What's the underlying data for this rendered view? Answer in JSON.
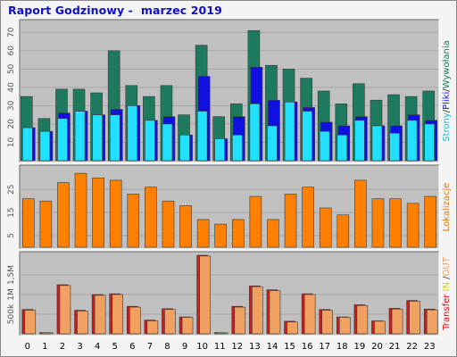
{
  "title": "Raport Godzinowy -  marzec 2019",
  "chart_data": [
    {
      "type": "bar",
      "categories": [
        "0",
        "1",
        "2",
        "3",
        "4",
        "5",
        "6",
        "7",
        "8",
        "9",
        "10",
        "11",
        "12",
        "13",
        "14",
        "15",
        "16",
        "17",
        "18",
        "19",
        "20",
        "21",
        "22",
        "23"
      ],
      "ylim": [
        0,
        75
      ],
      "yticks": [
        10,
        20,
        30,
        40,
        50,
        60,
        70
      ],
      "legend_parts": [
        {
          "text": "Strony",
          "color": "#22b8d8"
        },
        {
          "text": "/",
          "color": "#333333"
        },
        {
          "text": "Pliki",
          "color": "#1818e0"
        },
        {
          "text": "/",
          "color": "#333333"
        },
        {
          "text": "Wywołania",
          "color": "#1a7a5a"
        }
      ],
      "series": [
        {
          "name": "Wywołania",
          "color": "#1e7a5e",
          "values": [
            35,
            23,
            39,
            39,
            37,
            60,
            41,
            35,
            41,
            25,
            63,
            24,
            31,
            71,
            52,
            50,
            45,
            38,
            31,
            42,
            33,
            36,
            35,
            38
          ]
        },
        {
          "name": "Pliki",
          "color": "#1010e0",
          "values": [
            18,
            16,
            26,
            27,
            25,
            28,
            30,
            22,
            24,
            14,
            46,
            12,
            24,
            51,
            33,
            32,
            29,
            21,
            19,
            24,
            19,
            19,
            25,
            22
          ]
        },
        {
          "name": "Strony",
          "color": "#22e0ff",
          "values": [
            18,
            16,
            23,
            27,
            25,
            25,
            30,
            22,
            20,
            14,
            27,
            12,
            14,
            31,
            19,
            32,
            27,
            16,
            14,
            22,
            19,
            15,
            22,
            20
          ]
        }
      ]
    },
    {
      "type": "bar",
      "categories": [
        "0",
        "1",
        "2",
        "3",
        "4",
        "5",
        "6",
        "7",
        "8",
        "9",
        "10",
        "11",
        "12",
        "13",
        "14",
        "15",
        "16",
        "17",
        "18",
        "19",
        "20",
        "21",
        "22",
        "23"
      ],
      "ylim": [
        0,
        34
      ],
      "yticks": [
        5,
        15,
        25
      ],
      "legend_parts": [
        {
          "text": "Lokalizacje",
          "color": "#e07a10"
        }
      ],
      "series": [
        {
          "name": "Lokalizacje",
          "color": "#ff7f00",
          "values": [
            21,
            20,
            28,
            32,
            30,
            29,
            23,
            26,
            20,
            18,
            12,
            10,
            12,
            22,
            12,
            23,
            26,
            17,
            14,
            29,
            21,
            21,
            19,
            22
          ]
        }
      ]
    },
    {
      "type": "bar",
      "categories": [
        "0",
        "1",
        "2",
        "3",
        "4",
        "5",
        "6",
        "7",
        "8",
        "9",
        "10",
        "11",
        "12",
        "13",
        "14",
        "15",
        "16",
        "17",
        "18",
        "19",
        "20",
        "21",
        "22",
        "23"
      ],
      "ylim": [
        0,
        2000000
      ],
      "ytick_values": [
        500000,
        1000000,
        1500000
      ],
      "ytick_labels": [
        "500k",
        "1M",
        "1,5M"
      ],
      "legend_parts": [
        {
          "text": "Transfer",
          "color": "#d01010"
        },
        {
          "text": " IN ",
          "color": "#d8d800"
        },
        {
          "text": "/",
          "color": "#444444"
        },
        {
          "text": "OUT",
          "color": "#f0a060"
        }
      ],
      "series": [
        {
          "name": "IN",
          "color": "#d01a1a",
          "values": [
            620000,
            30000,
            1250000,
            600000,
            1000000,
            1020000,
            700000,
            350000,
            640000,
            430000,
            2000000,
            30000,
            700000,
            1220000,
            1120000,
            320000,
            1020000,
            620000,
            430000,
            740000,
            330000,
            650000,
            850000,
            630000
          ]
        },
        {
          "name": "OUT",
          "color": "#f0a060",
          "values": [
            600000,
            25000,
            1230000,
            580000,
            980000,
            1000000,
            680000,
            330000,
            620000,
            420000,
            1980000,
            25000,
            680000,
            1200000,
            1100000,
            300000,
            1000000,
            600000,
            420000,
            720000,
            320000,
            630000,
            830000,
            610000
          ]
        }
      ]
    }
  ]
}
